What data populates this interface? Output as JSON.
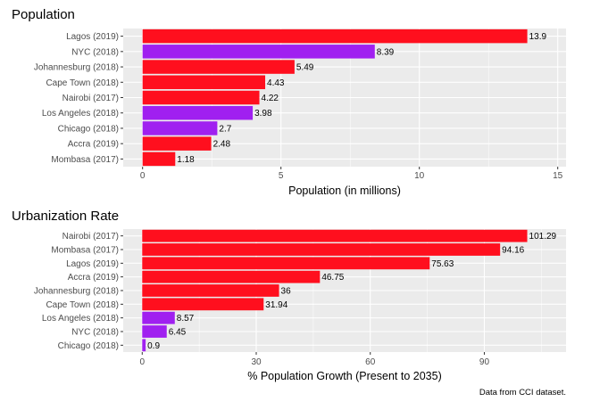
{
  "chart_data": [
    {
      "type": "bar",
      "orientation": "horizontal",
      "title": "Population",
      "xlabel": "Population (in millions)",
      "ylabel": "",
      "xlim": [
        -0.7,
        15.3
      ],
      "xticks": [
        0,
        5,
        10,
        15
      ],
      "grid": true,
      "categories": [
        "Lagos (2019)",
        "NYC (2018)",
        "Johannesburg (2018)",
        "Cape Town (2018)",
        "Nairobi (2017)",
        "Los Angeles (2018)",
        "Chicago (2018)",
        "Accra (2019)",
        "Mombasa (2017)"
      ],
      "values": [
        13.9,
        8.39,
        5.49,
        4.43,
        4.22,
        3.98,
        2.7,
        2.48,
        1.18
      ],
      "data_labels": [
        "13.9",
        "8.39",
        "5.49",
        "4.43",
        "4.22",
        "3.98",
        "2.7",
        "2.48",
        "1.18"
      ],
      "group": [
        "africa",
        "us",
        "africa",
        "africa",
        "africa",
        "us",
        "us",
        "africa",
        "africa"
      ]
    },
    {
      "type": "bar",
      "orientation": "horizontal",
      "title": "Urbanization Rate",
      "xlabel": "% Population Growth (Present to 2035)",
      "ylabel": "",
      "xlim": [
        -5.0,
        111.5
      ],
      "xticks": [
        0,
        30,
        60,
        90
      ],
      "grid": true,
      "categories": [
        "Nairobi (2017)",
        "Mombasa (2017)",
        "Lagos (2019)",
        "Accra (2019)",
        "Johannesburg (2018)",
        "Cape Town (2018)",
        "Los Angeles (2018)",
        "NYC (2018)",
        "Chicago (2018)"
      ],
      "values": [
        101.29,
        94.16,
        75.63,
        46.75,
        36,
        31.94,
        8.57,
        6.45,
        0.9
      ],
      "data_labels": [
        "101.29",
        "94.16",
        "75.63",
        "46.75",
        "36",
        "31.94",
        "8.57",
        "6.45",
        "0.9"
      ],
      "group": [
        "africa",
        "africa",
        "africa",
        "africa",
        "africa",
        "africa",
        "us",
        "us",
        "us"
      ]
    }
  ],
  "colors": {
    "africa": "#ff0f1e",
    "us": "#a020f0",
    "panel": "#ebebeb",
    "grid": "#ffffff"
  },
  "caption": "Data from CCI dataset."
}
